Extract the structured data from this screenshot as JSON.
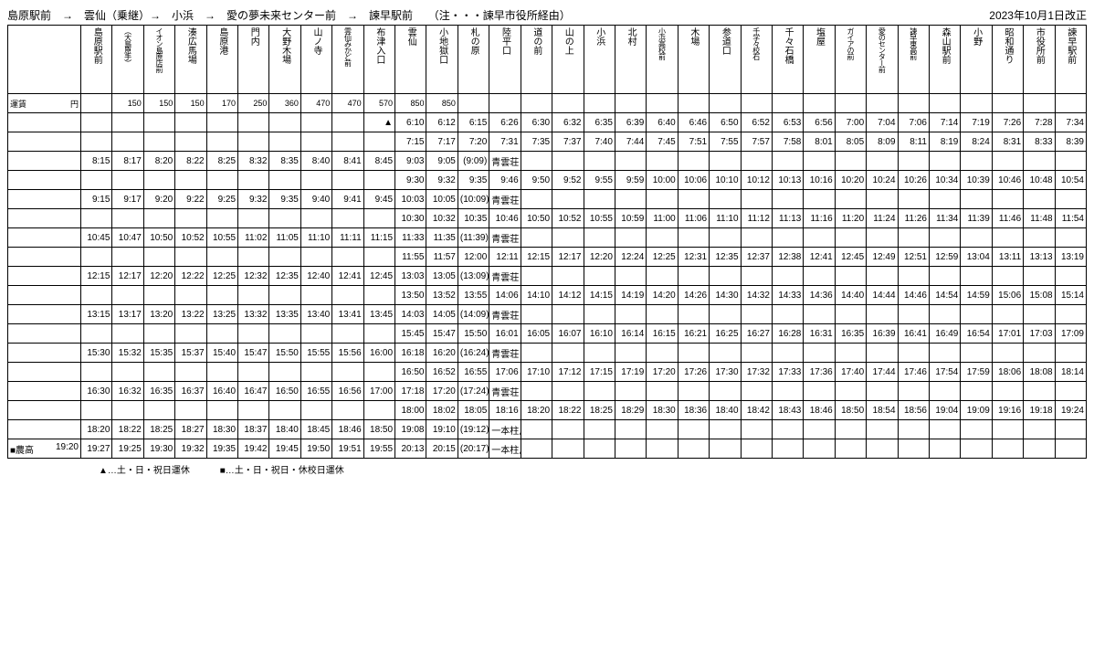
{
  "header": {
    "route": "島原駅前　→　雲仙（乗継）→　小浜　→　愛の夢未来センター前　→　諫早駅前",
    "via": "（注・・・諫早市役所経由）",
    "revision": "2023年10月1日改正"
  },
  "stops": [
    "",
    "島原駅前",
    "（大島原手）",
    "イオン島原店前",
    "湊広馬場",
    "島原港",
    "門内",
    "大野木場",
    "山ノ寺",
    "雲仙みかど前",
    "布津入口",
    "雲仙",
    "小地獄口",
    "札の原",
    "陸平口",
    "道の前",
    "山の上",
    "小浜",
    "北村",
    "小浜高校前",
    "木場",
    "参道口",
    "千学々校石",
    "千々石橋",
    "塩屋",
    "ガイアの前",
    "愛のセンター前",
    "諫早東高前",
    "森山駅前",
    "小野",
    "昭和通り",
    "市役所前",
    "諫早駅前"
  ],
  "stopsSmall": [
    false,
    false,
    true,
    true,
    false,
    false,
    false,
    false,
    false,
    true,
    false,
    false,
    false,
    false,
    false,
    false,
    false,
    false,
    false,
    true,
    false,
    false,
    true,
    false,
    false,
    true,
    true,
    true,
    false,
    false,
    false,
    false,
    false
  ],
  "fareLabel": "運賃",
  "fareUnit": "円",
  "fares": [
    "",
    "150",
    "150",
    "150",
    "170",
    "250",
    "360",
    "470",
    "470",
    "570",
    "850",
    "850",
    "",
    "",
    "",
    "",
    "",
    "",
    "",
    "",
    "",
    "",
    "",
    "",
    "",
    "",
    "",
    "",
    "",
    "",
    "",
    ""
  ],
  "rows": [
    {
      "mark": "",
      "label": "",
      "marker": "▲",
      "t": [
        "",
        "",
        "",
        "",
        "",
        "",
        "",
        "",
        "",
        "",
        "6:10",
        "6:12",
        "6:15",
        "6:26",
        "6:30",
        "6:32",
        "6:35",
        "6:39",
        "6:40",
        "6:46",
        "6:50",
        "6:52",
        "6:53",
        "6:56",
        "7:00",
        "7:04",
        "7:06",
        "7:14",
        "7:19",
        "7:26",
        "7:28",
        "7:34"
      ]
    },
    {
      "mark": "",
      "label": "",
      "marker": "",
      "t": [
        "",
        "",
        "",
        "",
        "",
        "",
        "",
        "",
        "",
        "",
        "7:15",
        "7:17",
        "7:20",
        "7:31",
        "7:35",
        "7:37",
        "7:40",
        "7:44",
        "7:45",
        "7:51",
        "7:55",
        "7:57",
        "7:58",
        "8:01",
        "8:05",
        "8:09",
        "8:11",
        "8:19",
        "8:24",
        "8:31",
        "8:33",
        "8:39"
      ]
    },
    {
      "mark": "",
      "label": "",
      "marker": "",
      "t": [
        "8:15",
        "8:17",
        "8:20",
        "8:22",
        "8:25",
        "8:32",
        "8:35",
        "8:40",
        "8:41",
        "8:45",
        "9:03",
        "9:05",
        "(9:09)",
        "青雲荘 着",
        "",
        "",
        "",
        "",
        "",
        "",
        "",
        "",
        "",
        "",
        "",
        "",
        "",
        "",
        "",
        "",
        "",
        ""
      ],
      "note": 14
    },
    {
      "mark": "",
      "label": "",
      "marker": "",
      "t": [
        "",
        "",
        "",
        "",
        "",
        "",
        "",
        "",
        "",
        "",
        "9:30",
        "9:32",
        "9:35",
        "9:46",
        "9:50",
        "9:52",
        "9:55",
        "9:59",
        "10:00",
        "10:06",
        "10:10",
        "10:12",
        "10:13",
        "10:16",
        "10:20",
        "10:24",
        "10:26",
        "10:34",
        "10:39",
        "10:46",
        "10:48",
        "10:54"
      ]
    },
    {
      "mark": "",
      "label": "",
      "marker": "",
      "t": [
        "9:15",
        "9:17",
        "9:20",
        "9:22",
        "9:25",
        "9:32",
        "9:35",
        "9:40",
        "9:41",
        "9:45",
        "10:03",
        "10:05",
        "(10:09)",
        "青雲荘 着",
        "",
        "",
        "",
        "",
        "",
        "",
        "",
        "",
        "",
        "",
        "",
        "",
        "",
        "",
        "",
        "",
        "",
        ""
      ],
      "note": 14
    },
    {
      "mark": "",
      "label": "",
      "marker": "",
      "t": [
        "",
        "",
        "",
        "",
        "",
        "",
        "",
        "",
        "",
        "",
        "10:30",
        "10:32",
        "10:35",
        "10:46",
        "10:50",
        "10:52",
        "10:55",
        "10:59",
        "11:00",
        "11:06",
        "11:10",
        "11:12",
        "11:13",
        "11:16",
        "11:20",
        "11:24",
        "11:26",
        "11:34",
        "11:39",
        "11:46",
        "11:48",
        "11:54"
      ]
    },
    {
      "mark": "",
      "label": "",
      "marker": "",
      "t": [
        "10:45",
        "10:47",
        "10:50",
        "10:52",
        "10:55",
        "11:02",
        "11:05",
        "11:10",
        "11:11",
        "11:15",
        "11:33",
        "11:35",
        "(11:39)",
        "青雲荘 着",
        "",
        "",
        "",
        "",
        "",
        "",
        "",
        "",
        "",
        "",
        "",
        "",
        "",
        "",
        "",
        "",
        "",
        ""
      ],
      "note": 14
    },
    {
      "mark": "",
      "label": "",
      "marker": "",
      "t": [
        "",
        "",
        "",
        "",
        "",
        "",
        "",
        "",
        "",
        "",
        "11:55",
        "11:57",
        "12:00",
        "12:11",
        "12:15",
        "12:17",
        "12:20",
        "12:24",
        "12:25",
        "12:31",
        "12:35",
        "12:37",
        "12:38",
        "12:41",
        "12:45",
        "12:49",
        "12:51",
        "12:59",
        "13:04",
        "13:11",
        "13:13",
        "13:19"
      ]
    },
    {
      "mark": "",
      "label": "",
      "marker": "",
      "t": [
        "12:15",
        "12:17",
        "12:20",
        "12:22",
        "12:25",
        "12:32",
        "12:35",
        "12:40",
        "12:41",
        "12:45",
        "13:03",
        "13:05",
        "(13:09)",
        "青雲荘 着",
        "",
        "",
        "",
        "",
        "",
        "",
        "",
        "",
        "",
        "",
        "",
        "",
        "",
        "",
        "",
        "",
        "",
        ""
      ],
      "note": 14
    },
    {
      "mark": "",
      "label": "",
      "marker": "",
      "t": [
        "",
        "",
        "",
        "",
        "",
        "",
        "",
        "",
        "",
        "",
        "13:50",
        "13:52",
        "13:55",
        "14:06",
        "14:10",
        "14:12",
        "14:15",
        "14:19",
        "14:20",
        "14:26",
        "14:30",
        "14:32",
        "14:33",
        "14:36",
        "14:40",
        "14:44",
        "14:46",
        "14:54",
        "14:59",
        "15:06",
        "15:08",
        "15:14"
      ]
    },
    {
      "mark": "",
      "label": "",
      "marker": "",
      "t": [
        "13:15",
        "13:17",
        "13:20",
        "13:22",
        "13:25",
        "13:32",
        "13:35",
        "13:40",
        "13:41",
        "13:45",
        "14:03",
        "14:05",
        "(14:09)",
        "青雲荘 着",
        "",
        "",
        "",
        "",
        "",
        "",
        "",
        "",
        "",
        "",
        "",
        "",
        "",
        "",
        "",
        "",
        "",
        ""
      ],
      "note": 14
    },
    {
      "mark": "",
      "label": "",
      "marker": "",
      "t": [
        "",
        "",
        "",
        "",
        "",
        "",
        "",
        "",
        "",
        "",
        "15:45",
        "15:47",
        "15:50",
        "16:01",
        "16:05",
        "16:07",
        "16:10",
        "16:14",
        "16:15",
        "16:21",
        "16:25",
        "16:27",
        "16:28",
        "16:31",
        "16:35",
        "16:39",
        "16:41",
        "16:49",
        "16:54",
        "17:01",
        "17:03",
        "17:09"
      ]
    },
    {
      "mark": "",
      "label": "",
      "marker": "",
      "t": [
        "15:30",
        "15:32",
        "15:35",
        "15:37",
        "15:40",
        "15:47",
        "15:50",
        "15:55",
        "15:56",
        "16:00",
        "16:18",
        "16:20",
        "(16:24)",
        "青雲荘 着",
        "",
        "",
        "",
        "",
        "",
        "",
        "",
        "",
        "",
        "",
        "",
        "",
        "",
        "",
        "",
        "",
        "",
        ""
      ],
      "note": 14
    },
    {
      "mark": "",
      "label": "",
      "marker": "",
      "t": [
        "",
        "",
        "",
        "",
        "",
        "",
        "",
        "",
        "",
        "",
        "16:50",
        "16:52",
        "16:55",
        "17:06",
        "17:10",
        "17:12",
        "17:15",
        "17:19",
        "17:20",
        "17:26",
        "17:30",
        "17:32",
        "17:33",
        "17:36",
        "17:40",
        "17:44",
        "17:46",
        "17:54",
        "17:59",
        "18:06",
        "18:08",
        "18:14"
      ]
    },
    {
      "mark": "",
      "label": "",
      "marker": "",
      "t": [
        "16:30",
        "16:32",
        "16:35",
        "16:37",
        "16:40",
        "16:47",
        "16:50",
        "16:55",
        "16:56",
        "17:00",
        "17:18",
        "17:20",
        "(17:24)",
        "青雲荘 着",
        "",
        "",
        "",
        "",
        "",
        "",
        "",
        "",
        "",
        "",
        "",
        "",
        "",
        "",
        "",
        "",
        "",
        ""
      ],
      "note": 14
    },
    {
      "mark": "",
      "label": "",
      "marker": "",
      "t": [
        "",
        "",
        "",
        "",
        "",
        "",
        "",
        "",
        "",
        "",
        "18:00",
        "18:02",
        "18:05",
        "18:16",
        "18:20",
        "18:22",
        "18:25",
        "18:29",
        "18:30",
        "18:36",
        "18:40",
        "18:42",
        "18:43",
        "18:46",
        "18:50",
        "18:54",
        "18:56",
        "19:04",
        "19:09",
        "19:16",
        "19:18",
        "19:24"
      ]
    },
    {
      "mark": "",
      "label": "",
      "marker": "",
      "t": [
        "18:20",
        "18:22",
        "18:25",
        "18:27",
        "18:30",
        "18:37",
        "18:40",
        "18:45",
        "18:46",
        "18:50",
        "19:08",
        "19:10",
        "(19:12)",
        "一本柱鳥居前 着",
        "",
        "",
        "",
        "",
        "",
        "",
        "",
        "",
        "",
        "",
        "",
        "",
        "",
        "",
        "",
        "",
        "",
        ""
      ],
      "note": 14
    },
    {
      "mark": "■農高",
      "label": "19:20",
      "marker": "",
      "t": [
        "19:27",
        "19:25",
        "19:30",
        "19:32",
        "19:35",
        "19:42",
        "19:45",
        "19:50",
        "19:51",
        "19:55",
        "20:13",
        "20:15",
        "(20:17)",
        "一本柱鳥居前 着",
        "",
        "",
        "",
        "",
        "",
        "",
        "",
        "",
        "",
        "",
        "",
        "",
        "",
        "",
        "",
        "",
        "",
        ""
      ],
      "note": 14
    }
  ],
  "footnotes": {
    "a": "▲…土・日・祝日運休",
    "b": "■…土・日・祝日・休校日運休"
  },
  "layout": {
    "firstColW": "80px"
  }
}
